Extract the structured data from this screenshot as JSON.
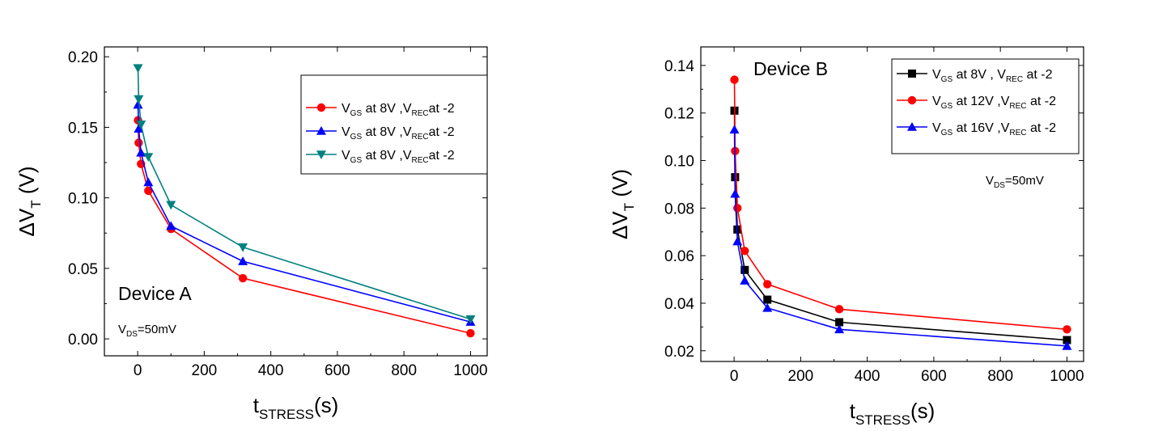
{
  "chart_data": [
    {
      "type": "line",
      "title": "",
      "xlabel": "t",
      "xlabel_sub": "STRESS",
      "xlabel_suffix": "(s)",
      "ylabel": "ΔV",
      "ylabel_sub": "T",
      "ylabel_suffix": " (V)",
      "xlim": [
        -100,
        1050
      ],
      "ylim": [
        -0.012,
        0.207
      ],
      "xticks": [
        0,
        200,
        400,
        600,
        800,
        1000
      ],
      "xtick_labels": [
        "0",
        "200",
        "400",
        "600",
        "800",
        "1000"
      ],
      "yticks": [
        0.0,
        0.05,
        0.1,
        0.15,
        0.2
      ],
      "ytick_labels": [
        "0.00",
        "0.05",
        "0.10",
        "0.15",
        "0.20"
      ],
      "legend_position": "top-right",
      "annotations": [
        {
          "text": "Device A"
        },
        {
          "text": "V",
          "sub": "DS",
          "suffix": "=50mV"
        }
      ],
      "series": [
        {
          "label": {
            "a": "V",
            "a_sub": "GS",
            "b": " at 8V ,V",
            "b_sub": "REC",
            "c": "at -2"
          },
          "color": "#ff0000",
          "marker": "circle",
          "x": [
            1,
            3,
            10,
            32,
            100,
            316,
            1000
          ],
          "y": [
            0.155,
            0.139,
            0.124,
            0.105,
            0.078,
            0.043,
            0.004
          ]
        },
        {
          "label": {
            "a": "V",
            "a_sub": "GS",
            "b": " at 8V ,V",
            "b_sub": "REC",
            "c": "at -2"
          },
          "color": "#0000ff",
          "marker": "triangle-up",
          "x": [
            1,
            3,
            10,
            32,
            100,
            316,
            1000
          ],
          "y": [
            0.166,
            0.149,
            0.132,
            0.111,
            0.08,
            0.055,
            0.012
          ]
        },
        {
          "label": {
            "a": "V",
            "a_sub": "GS",
            "b": " at 8V ,V",
            "b_sub": "REC",
            "c": "at -2"
          },
          "color": "#008080",
          "marker": "triangle-down",
          "x": [
            1,
            3,
            10,
            32,
            100,
            316,
            1000
          ],
          "y": [
            0.192,
            0.17,
            0.152,
            0.129,
            0.095,
            0.065,
            0.014
          ]
        }
      ]
    },
    {
      "type": "line",
      "title": "",
      "xlabel": "t",
      "xlabel_sub": "STRESS",
      "xlabel_suffix": "(s)",
      "ylabel": "ΔV",
      "ylabel_sub": "T",
      "ylabel_suffix": " (V)",
      "xlim": [
        -100,
        1050
      ],
      "ylim": [
        0.0155,
        0.1478
      ],
      "xticks": [
        0,
        200,
        400,
        600,
        800,
        1000
      ],
      "xtick_labels": [
        "0",
        "200",
        "400",
        "600",
        "800",
        "1000"
      ],
      "yticks": [
        0.02,
        0.04,
        0.06,
        0.08,
        0.1,
        0.12,
        0.14
      ],
      "ytick_labels": [
        "0.02",
        "0.04",
        "0.06",
        "0.08",
        "0.10",
        "0.12",
        "0.14"
      ],
      "legend_position": "top-right",
      "annotations": [
        {
          "text": "Device B"
        },
        {
          "text": "V",
          "sub": "DS",
          "suffix": "=50mV"
        }
      ],
      "series": [
        {
          "label": {
            "a": "V",
            "a_sub": "GS",
            "b": " at 8V ,  V",
            "b_sub": "REC",
            "c": " at -2"
          },
          "color": "#000000",
          "marker": "square",
          "x": [
            1,
            3,
            10,
            32,
            100,
            316,
            1000
          ],
          "y": [
            0.121,
            0.093,
            0.071,
            0.054,
            0.0415,
            0.032,
            0.0245
          ]
        },
        {
          "label": {
            "a": "V",
            "a_sub": "GS",
            "b": " at 12V ,V",
            "b_sub": "REC",
            "c": " at -2"
          },
          "color": "#ff0000",
          "marker": "circle",
          "x": [
            1,
            3,
            10,
            32,
            100,
            316,
            1000
          ],
          "y": [
            0.134,
            0.104,
            0.08,
            0.062,
            0.048,
            0.0375,
            0.029
          ]
        },
        {
          "label": {
            "a": "V",
            "a_sub": "GS",
            "b": " at 16V ,V",
            "b_sub": "REC",
            "c": " at -2"
          },
          "color": "#0000ff",
          "marker": "triangle-up",
          "x": [
            1,
            3,
            10,
            32,
            100,
            316,
            1000
          ],
          "y": [
            0.113,
            0.086,
            0.066,
            0.0495,
            0.038,
            0.029,
            0.022
          ]
        }
      ]
    }
  ]
}
